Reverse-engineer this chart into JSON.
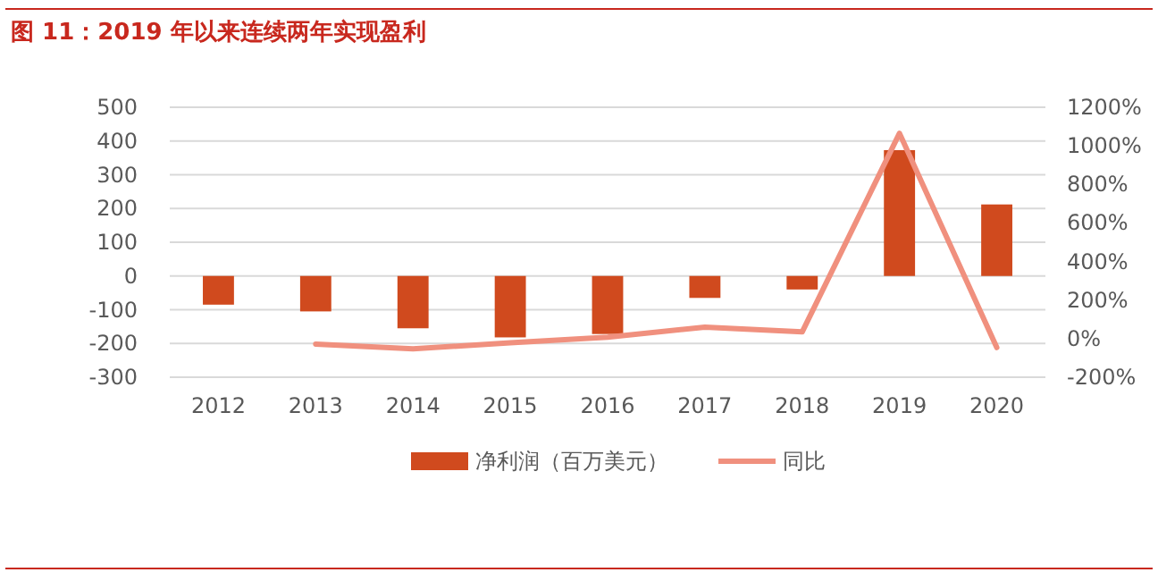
{
  "chart_data": {
    "type": "bar",
    "title": "图 11：2019 年以来连续两年实现盈利",
    "categories": [
      "2012",
      "2013",
      "2014",
      "2015",
      "2016",
      "2017",
      "2018",
      "2019",
      "2020"
    ],
    "series": [
      {
        "name": "净利润（百万美元）",
        "color": "#d04a1e",
        "values": [
          -85,
          -105,
          -155,
          -182,
          -172,
          -65,
          -40,
          373,
          212
        ]
      },
      {
        "name": "同比",
        "type": "line",
        "axis": "y2",
        "color": "#f0907e",
        "values": [
          null,
          -28,
          -53,
          -21,
          7,
          60,
          35,
          1065,
          -46
        ]
      }
    ],
    "ylim": [
      -300,
      500
    ],
    "yticks": [
      -300,
      -200,
      -100,
      0,
      100,
      200,
      300,
      400,
      500
    ],
    "y2lim": [
      -200,
      1200
    ],
    "y2ticks": [
      {
        "value": -200,
        "label": "-200%"
      },
      {
        "value": 0,
        "label": "0%"
      },
      {
        "value": 200,
        "label": "200%"
      },
      {
        "value": 400,
        "label": "400%"
      },
      {
        "value": 600,
        "label": "600%"
      },
      {
        "value": 800,
        "label": "800%"
      },
      {
        "value": 1000,
        "label": "1000%"
      },
      {
        "value": 1200,
        "label": "1200%"
      }
    ],
    "grid": "y",
    "legend": "bottom"
  }
}
